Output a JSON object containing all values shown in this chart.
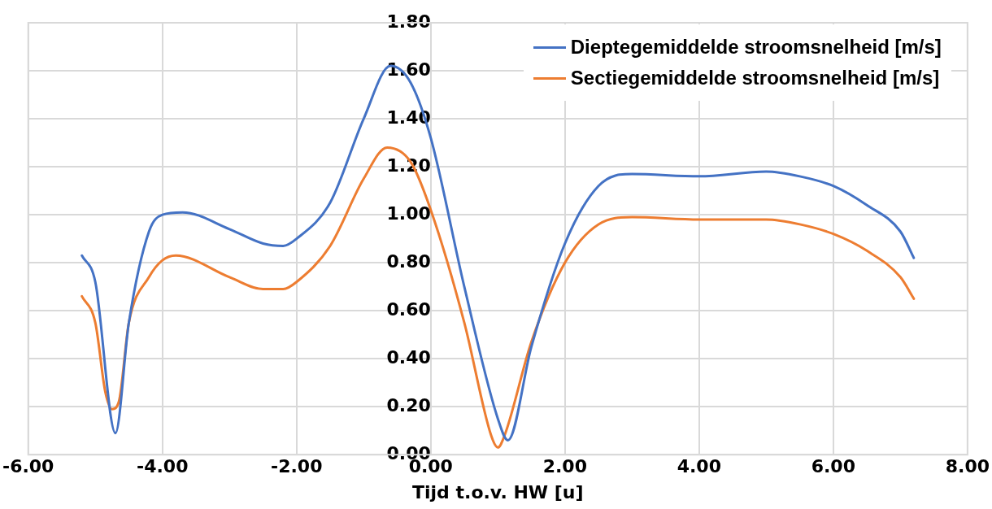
{
  "chart_data": {
    "type": "line",
    "xlabel": "Tijd t.o.v. HW [u]",
    "xlim": [
      -6,
      8
    ],
    "xticks": [
      {
        "value": -6,
        "label": "-6.00"
      },
      {
        "value": -4,
        "label": "-4.00"
      },
      {
        "value": -2,
        "label": "-2.00"
      },
      {
        "value": 0,
        "label": "0.00"
      },
      {
        "value": 2,
        "label": "2.00"
      },
      {
        "value": 4,
        "label": "4.00"
      },
      {
        "value": 6,
        "label": "6.00"
      },
      {
        "value": 8,
        "label": "8.00"
      }
    ],
    "ylim": [
      0,
      1.8
    ],
    "yticks": [
      {
        "value": 0,
        "label": "0.00"
      },
      {
        "value": 0.2,
        "label": "0.20"
      },
      {
        "value": 0.4,
        "label": "0.40"
      },
      {
        "value": 0.6,
        "label": "0.60"
      },
      {
        "value": 0.8,
        "label": "0.80"
      },
      {
        "value": 1,
        "label": "1.00"
      },
      {
        "value": 1.2,
        "label": "1.20"
      },
      {
        "value": 1.4,
        "label": "1.40"
      },
      {
        "value": 1.6,
        "label": "1.60"
      },
      {
        "value": 1.8,
        "label": "1.80"
      }
    ],
    "grid": true,
    "legend": "top right",
    "marker": "none",
    "line_style": "solid",
    "series": [
      {
        "name": "Dieptegemiddelde stroomsnelheid [m/s]",
        "color": "#4472c4",
        "x": [
          -5.2,
          -5.0,
          -4.7,
          -4.5,
          -4.2,
          -4.0,
          -3.7,
          -3.0,
          -2.5,
          -2.2,
          -2.0,
          -1.5,
          -1.0,
          -0.6,
          -0.3,
          0,
          0.5,
          1.0,
          1.15,
          1.5,
          2.0,
          2.5,
          3.0,
          4.0,
          5.0,
          5.5,
          6.0,
          6.5,
          7.0,
          7.2
        ],
        "values": [
          0.83,
          0.72,
          0.09,
          0.55,
          0.93,
          1.0,
          1.01,
          0.94,
          0.88,
          0.87,
          0.9,
          1.05,
          1.4,
          1.62,
          1.55,
          1.32,
          0.7,
          0.15,
          0.06,
          0.45,
          0.88,
          1.12,
          1.17,
          1.16,
          1.18,
          1.16,
          1.12,
          1.04,
          0.93,
          0.82
        ]
      },
      {
        "name": "Sectiegemiddelde stroomsnelheid [m/s]",
        "color": "#ed7d31",
        "x": [
          -5.2,
          -5.0,
          -4.85,
          -4.75,
          -4.65,
          -4.5,
          -4.2,
          -4.0,
          -3.8,
          -3.0,
          -2.5,
          -2.2,
          -2.0,
          -1.5,
          -1.0,
          -0.65,
          -0.3,
          0,
          0.5,
          0.9,
          1.0,
          1.1,
          1.5,
          2.0,
          2.5,
          3.0,
          4.0,
          5.0,
          5.5,
          6.0,
          6.5,
          7.0,
          7.2
        ],
        "values": [
          0.66,
          0.55,
          0.26,
          0.19,
          0.22,
          0.55,
          0.74,
          0.81,
          0.83,
          0.74,
          0.69,
          0.69,
          0.72,
          0.87,
          1.15,
          1.28,
          1.22,
          1.02,
          0.55,
          0.08,
          0.03,
          0.08,
          0.47,
          0.8,
          0.96,
          0.99,
          0.98,
          0.98,
          0.96,
          0.92,
          0.85,
          0.74,
          0.65
        ]
      }
    ]
  }
}
